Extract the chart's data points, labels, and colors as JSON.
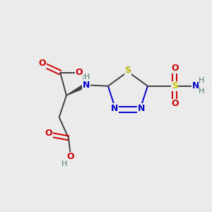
{
  "bg_color": "#ebebeb",
  "colors": {
    "C": "#4a7a7a",
    "N": "#0000cc",
    "O": "#cc0000",
    "S_ring": "#b8b800",
    "S_sulfo": "#cccc00",
    "H": "#4a7a7a",
    "bond": "#404040"
  },
  "figsize": [
    3.0,
    3.0
  ],
  "dpi": 100
}
